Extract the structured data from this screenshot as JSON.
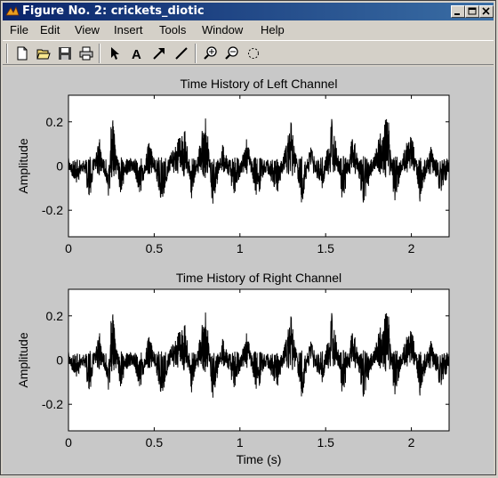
{
  "window": {
    "title": "Figure No. 2: crickets_diotic"
  },
  "menu": [
    "File",
    "Edit",
    "View",
    "Insert",
    "Tools",
    "Window",
    "Help"
  ],
  "toolbar": {
    "icons": [
      "new-file-icon",
      "open-folder-icon",
      "save-icon",
      "print-icon",
      "edit-plot-arrow-icon",
      "insert-text-icon",
      "insert-arrow-icon",
      "insert-line-icon",
      "zoom-in-icon",
      "zoom-out-icon",
      "rotate-icon"
    ]
  },
  "chart_data": [
    {
      "type": "line",
      "title": "Time History of Left Channel",
      "xlabel": "",
      "ylabel": "Amplitude",
      "xlim": [
        0,
        2.22
      ],
      "ylim": [
        -0.32,
        0.32
      ],
      "xticks": [
        "0",
        "0.5",
        "1",
        "1.5",
        "2"
      ],
      "yticks": [
        "0.2",
        "0",
        "-0.2"
      ],
      "grid": false,
      "series": [
        {
          "color": "#000000",
          "description_values": [
            [
              0.0,
              0.01
            ],
            [
              0.05,
              -0.07
            ],
            [
              0.09,
              0.03
            ],
            [
              0.12,
              -0.16
            ],
            [
              0.18,
              0.13
            ],
            [
              0.24,
              -0.17
            ],
            [
              0.25,
              0.31
            ],
            [
              0.3,
              -0.12
            ],
            [
              0.37,
              0.05
            ],
            [
              0.42,
              -0.14
            ],
            [
              0.47,
              0.12
            ],
            [
              0.55,
              -0.19
            ],
            [
              0.6,
              0.08
            ],
            [
              0.68,
              0.19
            ],
            [
              0.72,
              -0.17
            ],
            [
              0.8,
              0.28
            ],
            [
              0.84,
              -0.19
            ],
            [
              0.9,
              0.09
            ],
            [
              0.97,
              -0.14
            ],
            [
              1.04,
              0.12
            ],
            [
              1.1,
              -0.16
            ],
            [
              1.15,
              0.02
            ],
            [
              1.22,
              -0.13
            ],
            [
              1.3,
              0.22
            ],
            [
              1.36,
              -0.19
            ],
            [
              1.41,
              0.1
            ],
            [
              1.48,
              -0.13
            ],
            [
              1.54,
              0.27
            ],
            [
              1.6,
              -0.18
            ],
            [
              1.66,
              0.16
            ],
            [
              1.72,
              -0.18
            ],
            [
              1.78,
              0.02
            ],
            [
              1.86,
              0.3
            ],
            [
              1.9,
              -0.18
            ],
            [
              1.96,
              0.06
            ],
            [
              2.0,
              0.18
            ],
            [
              2.05,
              -0.17
            ],
            [
              2.11,
              0.09
            ],
            [
              2.17,
              -0.13
            ],
            [
              2.22,
              0.0
            ]
          ]
        }
      ]
    },
    {
      "type": "line",
      "title": "Time History of Right Channel",
      "xlabel": "Time (s)",
      "ylabel": "Amplitude",
      "xlim": [
        0,
        2.22
      ],
      "ylim": [
        -0.32,
        0.32
      ],
      "xticks": [
        "0",
        "0.5",
        "1",
        "1.5",
        "2"
      ],
      "yticks": [
        "0.2",
        "0",
        "-0.2"
      ],
      "grid": false,
      "series": [
        {
          "color": "#000000",
          "description_values": [
            [
              0.0,
              0.01
            ],
            [
              0.05,
              -0.07
            ],
            [
              0.09,
              0.03
            ],
            [
              0.12,
              -0.16
            ],
            [
              0.18,
              0.13
            ],
            [
              0.24,
              -0.17
            ],
            [
              0.25,
              0.31
            ],
            [
              0.3,
              -0.12
            ],
            [
              0.37,
              0.05
            ],
            [
              0.42,
              -0.14
            ],
            [
              0.47,
              0.12
            ],
            [
              0.55,
              -0.19
            ],
            [
              0.6,
              0.08
            ],
            [
              0.68,
              0.19
            ],
            [
              0.72,
              -0.17
            ],
            [
              0.8,
              0.28
            ],
            [
              0.84,
              -0.19
            ],
            [
              0.9,
              0.09
            ],
            [
              0.97,
              -0.14
            ],
            [
              1.04,
              0.12
            ],
            [
              1.1,
              -0.16
            ],
            [
              1.15,
              0.02
            ],
            [
              1.22,
              -0.13
            ],
            [
              1.3,
              0.22
            ],
            [
              1.36,
              -0.19
            ],
            [
              1.41,
              0.1
            ],
            [
              1.48,
              -0.13
            ],
            [
              1.54,
              0.27
            ],
            [
              1.6,
              -0.18
            ],
            [
              1.66,
              0.16
            ],
            [
              1.72,
              -0.18
            ],
            [
              1.78,
              0.02
            ],
            [
              1.86,
              0.3
            ],
            [
              1.9,
              -0.18
            ],
            [
              1.96,
              0.06
            ],
            [
              2.0,
              0.18
            ],
            [
              2.05,
              -0.17
            ],
            [
              2.11,
              0.09
            ],
            [
              2.17,
              -0.13
            ],
            [
              2.22,
              0.0
            ]
          ]
        }
      ]
    }
  ]
}
